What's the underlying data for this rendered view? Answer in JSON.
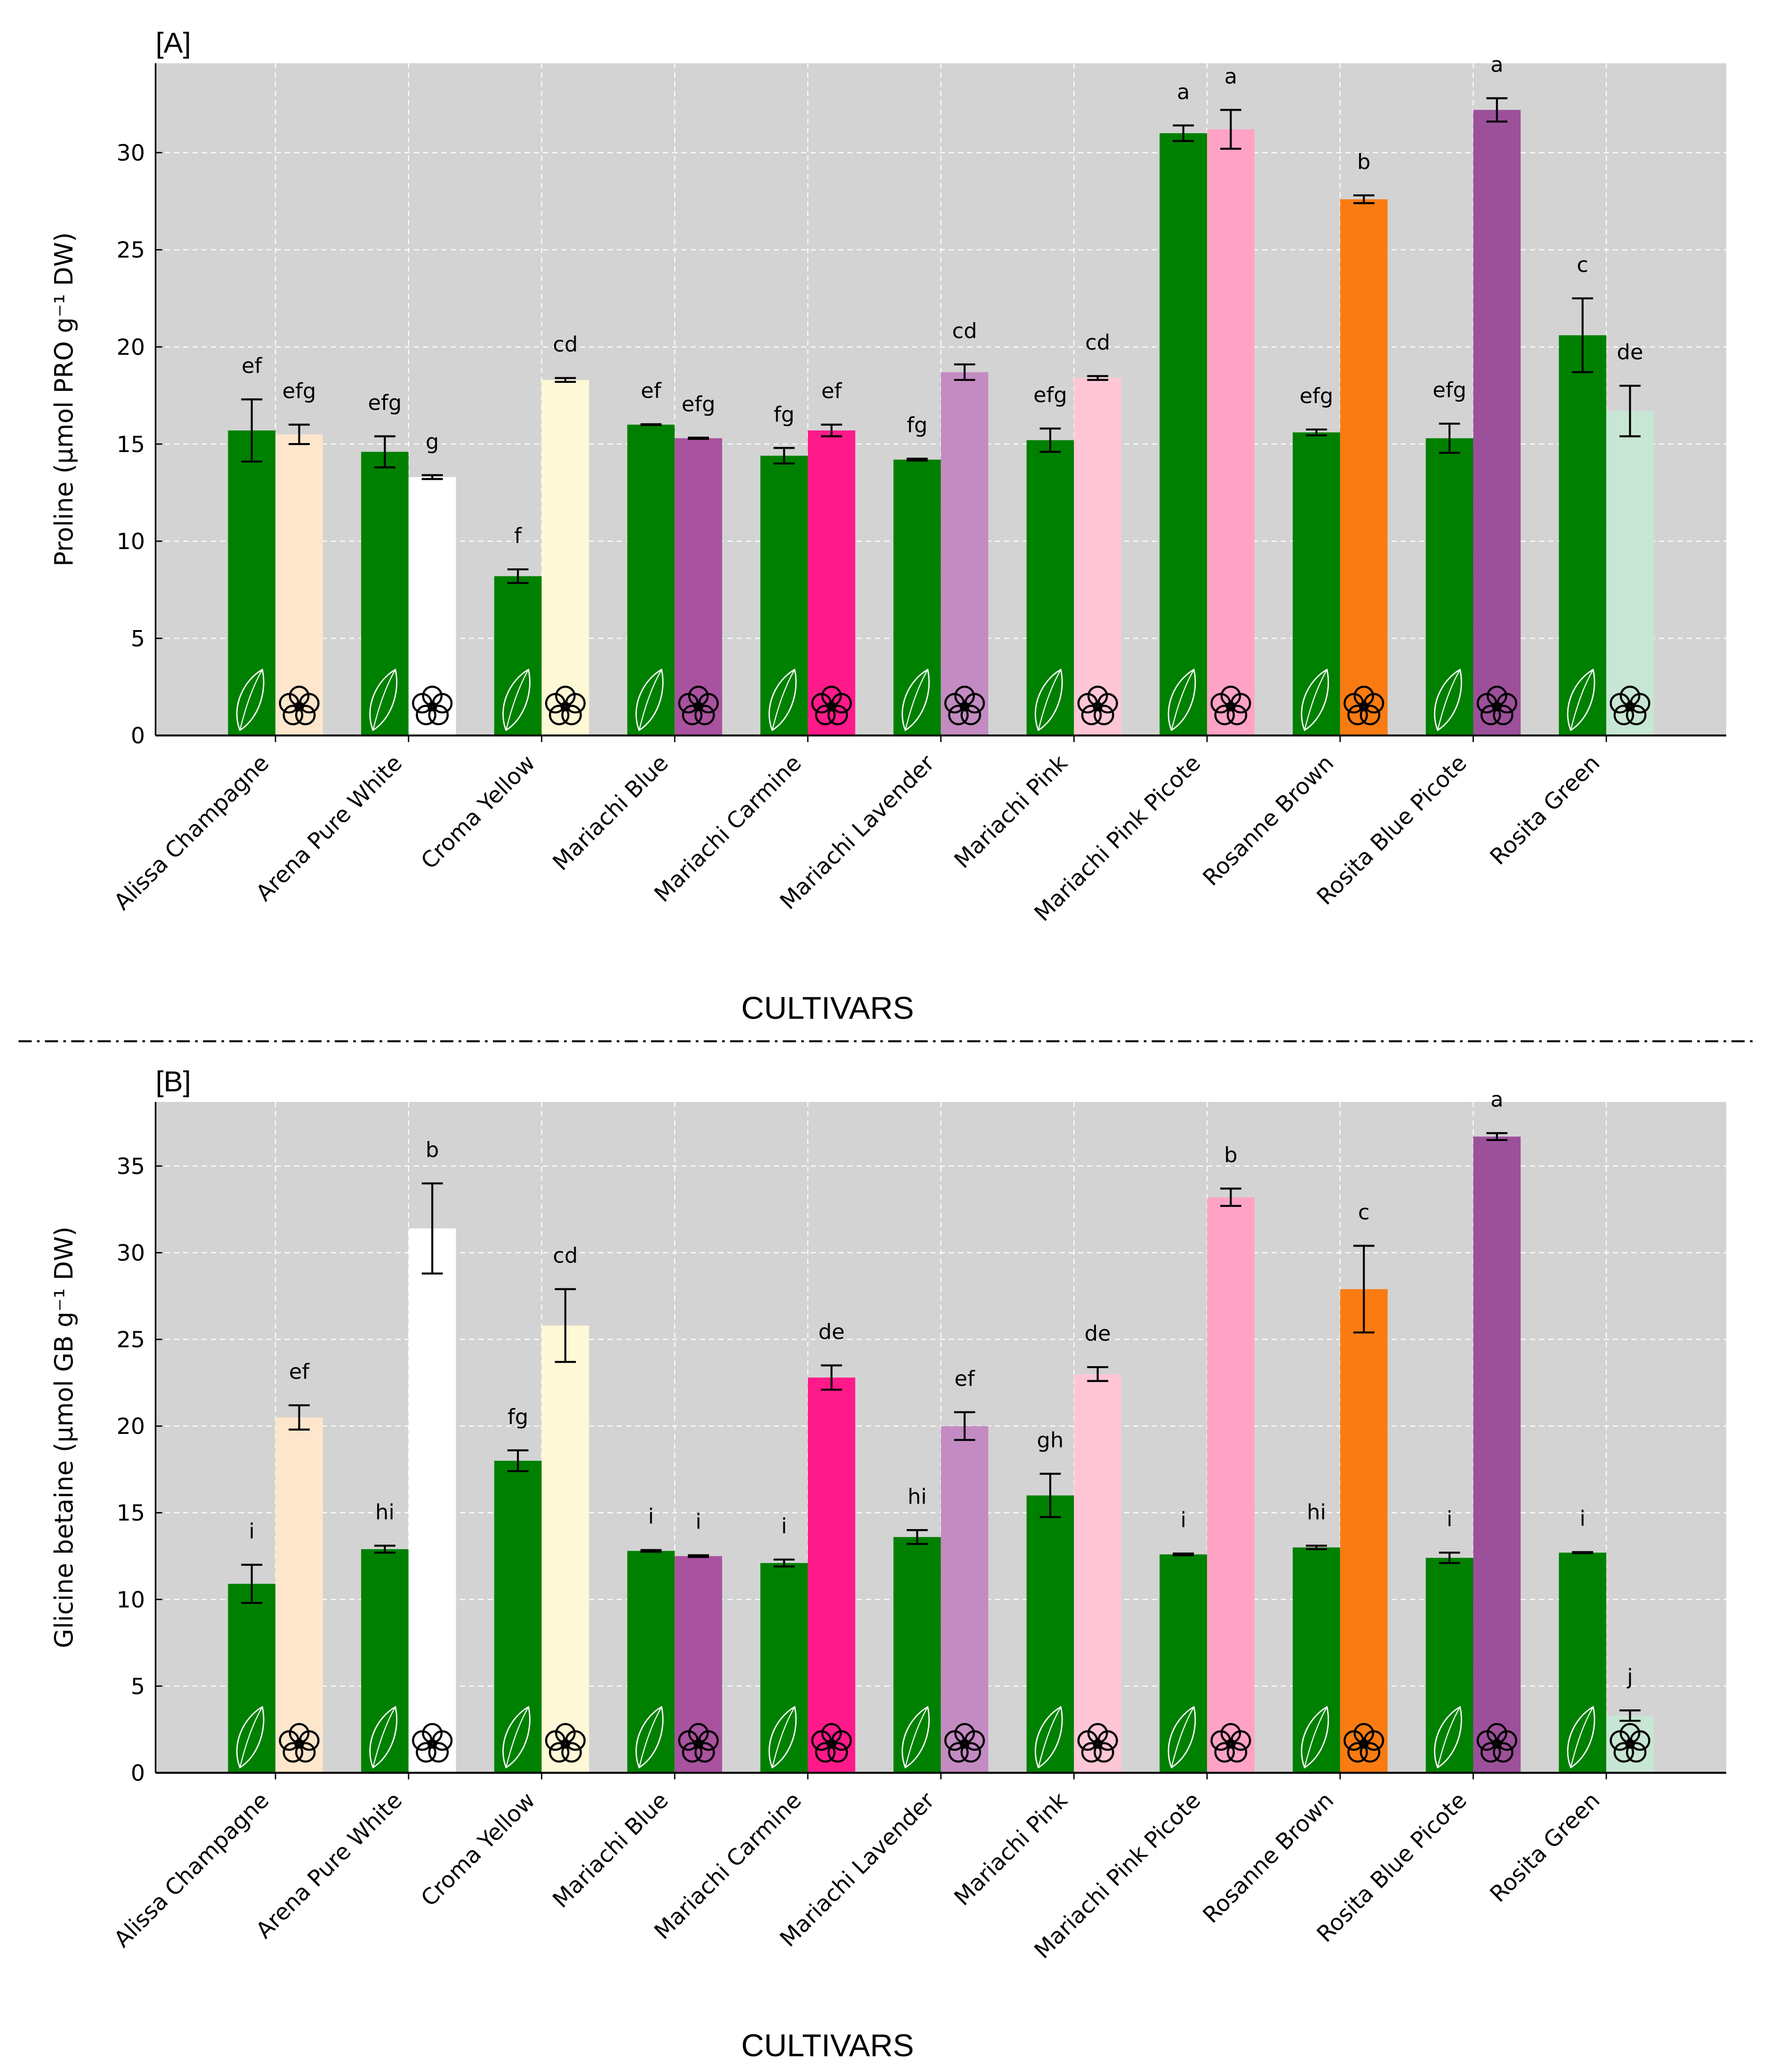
{
  "colors": {
    "leaf": "#008000",
    "background": "#d3d3d3",
    "grid": "#ffffff"
  },
  "icons": {
    "leaf": "leaf-icon",
    "flower": "flower-icon"
  },
  "chart_data": [
    {
      "type": "bar",
      "panel_label": "[A]",
      "xlabel": "CULTIVARS",
      "ylabel": "Proline (µmol PRO g⁻¹ DW)",
      "ylim": [
        0,
        34.6
      ],
      "yticks": [
        0,
        5,
        10,
        15,
        20,
        25,
        30
      ],
      "grid": true,
      "categories": [
        "Alissa Champagne",
        "Arena Pure White",
        "Croma Yellow",
        "Mariachi Blue",
        "Mariachi Carmine",
        "Mariachi Lavender",
        "Mariachi Pink",
        "Mariachi Pink Picote",
        "Rosanne Brown",
        "Rosita Blue Picote",
        "Rosita Green"
      ],
      "flower_colors": [
        "#fde6cc",
        "#ffffff",
        "#fff8d6",
        "#a9529f",
        "#ff1a8a",
        "#c38bc2",
        "#ffc6d6",
        "#ffa3c5",
        "#f97b12",
        "#9c509a",
        "#c7e6d3"
      ],
      "series": [
        {
          "organ": "leaf",
          "values": [
            15.7,
            14.6,
            8.2,
            16.0,
            14.4,
            14.2,
            15.2,
            31.0,
            15.6,
            15.3,
            20.6
          ],
          "errors": [
            1.6,
            0.8,
            0.35,
            0.02,
            0.4,
            0.05,
            0.6,
            0.4,
            0.15,
            0.75,
            1.9
          ],
          "letters": [
            "ef",
            "efg",
            "f",
            "ef",
            "fg",
            "fg",
            "efg",
            "a",
            "efg",
            "efg",
            "c"
          ]
        },
        {
          "organ": "flower",
          "values": [
            15.5,
            13.3,
            18.3,
            15.3,
            15.7,
            18.7,
            18.4,
            31.2,
            27.6,
            32.2,
            16.7
          ],
          "errors": [
            0.5,
            0.1,
            0.1,
            0.03,
            0.3,
            0.4,
            0.1,
            1.0,
            0.2,
            0.6,
            1.3
          ],
          "letters": [
            "efg",
            "g",
            "cd",
            "efg",
            "ef",
            "cd",
            "cd",
            "a",
            "b",
            "a",
            "de"
          ]
        }
      ]
    },
    {
      "type": "bar",
      "panel_label": "[B]",
      "xlabel": "CULTIVARS",
      "ylabel": "Glicine betaine (µmol GB g⁻¹ DW)",
      "ylim": [
        0,
        38.7
      ],
      "yticks": [
        0,
        5,
        10,
        15,
        20,
        25,
        30,
        35
      ],
      "grid": true,
      "categories": [
        "Alissa Champagne",
        "Arena Pure White",
        "Croma Yellow",
        "Mariachi Blue",
        "Mariachi Carmine",
        "Mariachi Lavender",
        "Mariachi Pink",
        "Mariachi Pink Picote",
        "Rosanne Brown",
        "Rosita Blue Picote",
        "Rosita Green"
      ],
      "flower_colors": [
        "#fde6cc",
        "#ffffff",
        "#fff8d6",
        "#a9529f",
        "#ff1a8a",
        "#c38bc2",
        "#ffc6d6",
        "#ffa3c5",
        "#f97b12",
        "#9c509a",
        "#c7e6d3"
      ],
      "series": [
        {
          "organ": "leaf",
          "values": [
            10.9,
            12.9,
            18.0,
            12.8,
            12.1,
            13.6,
            16.0,
            12.6,
            13.0,
            12.4,
            12.7
          ],
          "errors": [
            1.1,
            0.2,
            0.6,
            0.05,
            0.2,
            0.4,
            1.25,
            0.05,
            0.1,
            0.3,
            0.03
          ],
          "letters": [
            "i",
            "hi",
            "fg",
            "i",
            "i",
            "hi",
            "gh",
            "i",
            "hi",
            "i",
            "i"
          ]
        },
        {
          "organ": "flower",
          "values": [
            20.5,
            31.4,
            25.8,
            12.5,
            22.8,
            20.0,
            23.0,
            33.2,
            27.9,
            36.7,
            3.3
          ],
          "errors": [
            0.7,
            2.6,
            2.1,
            0.05,
            0.7,
            0.8,
            0.4,
            0.5,
            2.5,
            0.2,
            0.3
          ],
          "letters": [
            "ef",
            "b",
            "cd",
            "i",
            "de",
            "ef",
            "de",
            "b",
            "c",
            "a",
            "j"
          ]
        }
      ]
    }
  ]
}
